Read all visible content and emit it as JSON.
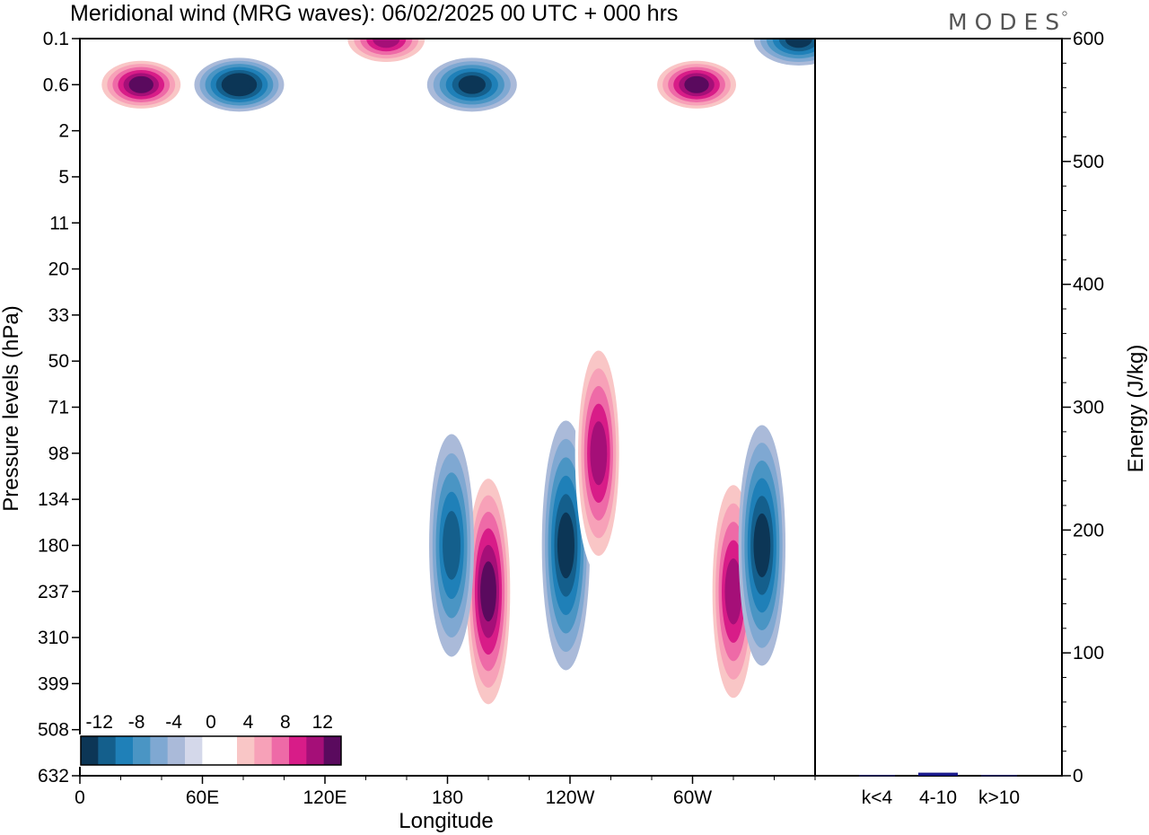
{
  "chart_data": [
    {
      "type": "heatmap",
      "title": "Meridional wind (MRG waves):  06/02/2025  00 UTC  + 000 hrs",
      "xlabel": "Longitude",
      "ylabel": "Pressure levels (hPa)",
      "x_ticks": [
        "0",
        "60E",
        "120E",
        "180",
        "120W",
        "60W"
      ],
      "y_ticks": [
        "0.1",
        "0.6",
        "2",
        "5",
        "11",
        "20",
        "33",
        "50",
        "71",
        "98",
        "134",
        "180",
        "237",
        "310",
        "399",
        "508",
        "632"
      ],
      "colorbar": {
        "labels": [
          "-12",
          "-8",
          "-4",
          "0",
          "4",
          "8",
          "12"
        ],
        "levels": [
          -14,
          -12,
          -10,
          -8,
          -6,
          -4,
          -2,
          0,
          2,
          4,
          6,
          8,
          10,
          12,
          14
        ],
        "colors": [
          "#0c3656",
          "#145f8c",
          "#1f80b8",
          "#4a95c4",
          "#7fa8d2",
          "#aabad9",
          "#d4d8ea",
          "#ffffff",
          "#ffffff",
          "#f9c6c6",
          "#f7a1b8",
          "#ee6aa7",
          "#d81c88",
          "#a50f78",
          "#5a0a5e"
        ]
      },
      "features": [
        {
          "lon": 200,
          "level": "237",
          "value": 14
        },
        {
          "lon": 238,
          "level": "180",
          "value": -13
        },
        {
          "lon": 182,
          "level": "180",
          "value": -10
        },
        {
          "lon": 254,
          "level": "98",
          "value": 12
        },
        {
          "lon": 320,
          "level": "237",
          "value": 13
        },
        {
          "lon": 334,
          "level": "180",
          "value": -12
        },
        {
          "lon": 30,
          "level": "0.6",
          "value": 14
        },
        {
          "lon": 78,
          "level": "0.6",
          "value": -14
        },
        {
          "lon": 150,
          "level": "0.1",
          "value": 13
        },
        {
          "lon": 192,
          "level": "0.6",
          "value": -13
        },
        {
          "lon": 302,
          "level": "0.6",
          "value": 14
        },
        {
          "lon": 352,
          "level": "0.1",
          "value": -12
        }
      ]
    },
    {
      "type": "bar",
      "ylabel": "Energy (J/kg)",
      "categories": [
        "k<4",
        "4-10",
        "k>10"
      ],
      "values": [
        0.5,
        2.5,
        0.5
      ],
      "ylim": [
        0,
        600
      ],
      "y_ticks": [
        "0",
        "100",
        "200",
        "300",
        "400",
        "500",
        "600"
      ],
      "bar_color": "#1a1a8c"
    }
  ],
  "logo": "MODES"
}
